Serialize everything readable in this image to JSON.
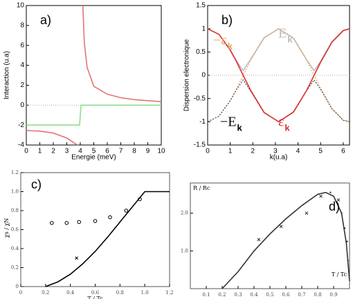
{
  "chart_data": [
    {
      "type": "line",
      "label": "a)",
      "xlabel": "Energie (meV)",
      "ylabel": "Interaction (u.a)",
      "xlim": [
        0,
        10
      ],
      "ylim": [
        -4,
        10
      ],
      "xticks": [
        0,
        1,
        2,
        3,
        4,
        5,
        6,
        7,
        8,
        9,
        10
      ],
      "yticks": [
        -4,
        -2,
        0,
        2,
        4,
        6,
        8,
        10
      ],
      "zero_line": true,
      "series": [
        {
          "kind": "line",
          "color": "#e57373",
          "x": [
            0,
            1,
            2,
            3,
            3.5,
            3.8,
            3.95,
            4.19,
            4.3,
            4.5,
            5,
            6,
            7,
            8,
            9,
            10
          ],
          "values": [
            -2.55,
            -2.6,
            -2.8,
            -3.3,
            -3.75,
            -4,
            null,
            10,
            6.3,
            3.8,
            1.9,
            1.1,
            0.75,
            0.55,
            0.45,
            0.35
          ]
        },
        {
          "kind": "line",
          "color": "#8fdc8f",
          "x": [
            0,
            3.95,
            4.05,
            10
          ],
          "values": [
            -2,
            -2,
            0,
            0
          ]
        }
      ]
    },
    {
      "type": "line",
      "label": "b)",
      "xlabel": "k(u.a)",
      "ylabel": "Dispersion electronique",
      "xlim": [
        0,
        6.28
      ],
      "ylim": [
        -1.5,
        1.5
      ],
      "xticks": [
        0,
        1,
        2,
        3,
        4,
        5,
        6
      ],
      "yticks": [
        -1.5,
        -1,
        -0.5,
        0,
        0.5,
        1,
        1.5
      ],
      "zero_line": true,
      "x": [
        0,
        0.5,
        1,
        1.25,
        1.57,
        1.9,
        2.5,
        3.14,
        3.8,
        4.4,
        4.71,
        5,
        5.5,
        6,
        6.28
      ],
      "series": [
        {
          "kind": "line",
          "color": "#bdbdbd",
          "values": [
            1.0,
            0.88,
            0.55,
            0.33,
            0.1,
            0.34,
            0.81,
            1.0,
            0.8,
            0.32,
            0.1,
            0.3,
            0.72,
            0.97,
            1.0
          ]
        },
        {
          "kind": "dashed",
          "color": "#e8a060",
          "values": [
            -1,
            -0.88,
            -0.54,
            -0.32,
            0,
            0.32,
            0.8,
            1,
            0.79,
            0.31,
            0,
            -0.28,
            -0.71,
            -0.96,
            -1
          ]
        },
        {
          "kind": "dashed",
          "color": "#444444",
          "values": [
            -1.0,
            -0.88,
            -0.55,
            -0.33,
            -0.1,
            -0.34,
            -0.81,
            -1.0,
            -0.8,
            -0.32,
            -0.1,
            -0.3,
            -0.72,
            -0.97,
            -1.0
          ]
        },
        {
          "kind": "line",
          "color": "#d93030",
          "values": [
            1,
            0.88,
            0.54,
            0.32,
            0,
            -0.32,
            -0.8,
            -1,
            -0.79,
            -0.31,
            0,
            0.28,
            0.71,
            0.96,
            1
          ]
        }
      ],
      "annotations": [
        {
          "text": "−ε",
          "sub": "k",
          "color": "#e8a060"
        },
        {
          "text": "E",
          "sub": "k",
          "color": "#bdbdbd"
        },
        {
          "text": "−E",
          "sub": "k",
          "color": "#000000"
        },
        {
          "text": "ε",
          "sub": "k",
          "color": "#d93030"
        }
      ]
    },
    {
      "type": "scatter",
      "label": "c)",
      "xlabel": "T / Tc",
      "ylabel": "χs / χN",
      "xlim": [
        0,
        1.2
      ],
      "ylim": [
        0,
        1.2
      ],
      "xticks": [
        0,
        0.2,
        0.4,
        0.6,
        0.8,
        {
          "value": 1,
          "label": "1.0"
        },
        1.2
      ],
      "yticks": [
        0,
        0.2,
        0.4,
        0.6,
        0.8,
        {
          "value": 1,
          "label": "1.0"
        },
        1.2
      ],
      "series": [
        {
          "kind": "line",
          "color": "#000000",
          "x": [
            0.2,
            0.3,
            0.4,
            0.5,
            0.6,
            0.7,
            0.8,
            0.9,
            1.0,
            1.2
          ],
          "values": [
            0,
            0.05,
            0.13,
            0.24,
            0.37,
            0.52,
            0.68,
            0.84,
            1.0,
            1.0
          ]
        },
        {
          "kind": "circle",
          "color": "#000000",
          "x": [
            0.25,
            0.37,
            0.47,
            0.6,
            0.72,
            0.85,
            0.96
          ],
          "values": [
            0.67,
            0.67,
            0.68,
            0.69,
            0.73,
            0.8,
            0.92
          ]
        },
        {
          "kind": "cross",
          "color": "#000000",
          "x": [
            0.45
          ],
          "values": [
            0.3
          ]
        }
      ]
    },
    {
      "type": "scatter",
      "label": "d)",
      "xlabel": "T / Tc",
      "ylabel": "R / Rc",
      "xlim": [
        0,
        1
      ],
      "ylim": [
        0,
        2.8
      ],
      "xticks": [
        0.1,
        0.2,
        0.3,
        0.4,
        0.5,
        0.6,
        0.7,
        0.8,
        0.9
      ],
      "yticks": [
        {
          "value": 1,
          "label": "1.0"
        },
        {
          "value": 2,
          "label": "2.0"
        }
      ],
      "series": [
        {
          "kind": "line",
          "color": "#333333",
          "x": [
            0.2,
            0.3,
            0.4,
            0.5,
            0.6,
            0.7,
            0.8,
            0.85,
            0.9,
            0.95,
            0.98,
            1.0
          ],
          "values": [
            0,
            0.45,
            1.0,
            1.45,
            1.85,
            2.2,
            2.5,
            2.55,
            2.45,
            2.0,
            1.2,
            0.2
          ]
        },
        {
          "kind": "cross",
          "color": "#333333",
          "x": [
            0.43,
            0.57,
            0.73,
            0.82,
            0.93
          ],
          "values": [
            1.3,
            1.65,
            2.0,
            2.45,
            2.35
          ]
        },
        {
          "kind": "dot",
          "color": "#333333",
          "x": [
            0.88,
            0.95,
            0.97,
            0.985,
            0.99
          ],
          "values": [
            2.55,
            2.0,
            1.6,
            1.25,
            0.75
          ]
        }
      ]
    }
  ]
}
